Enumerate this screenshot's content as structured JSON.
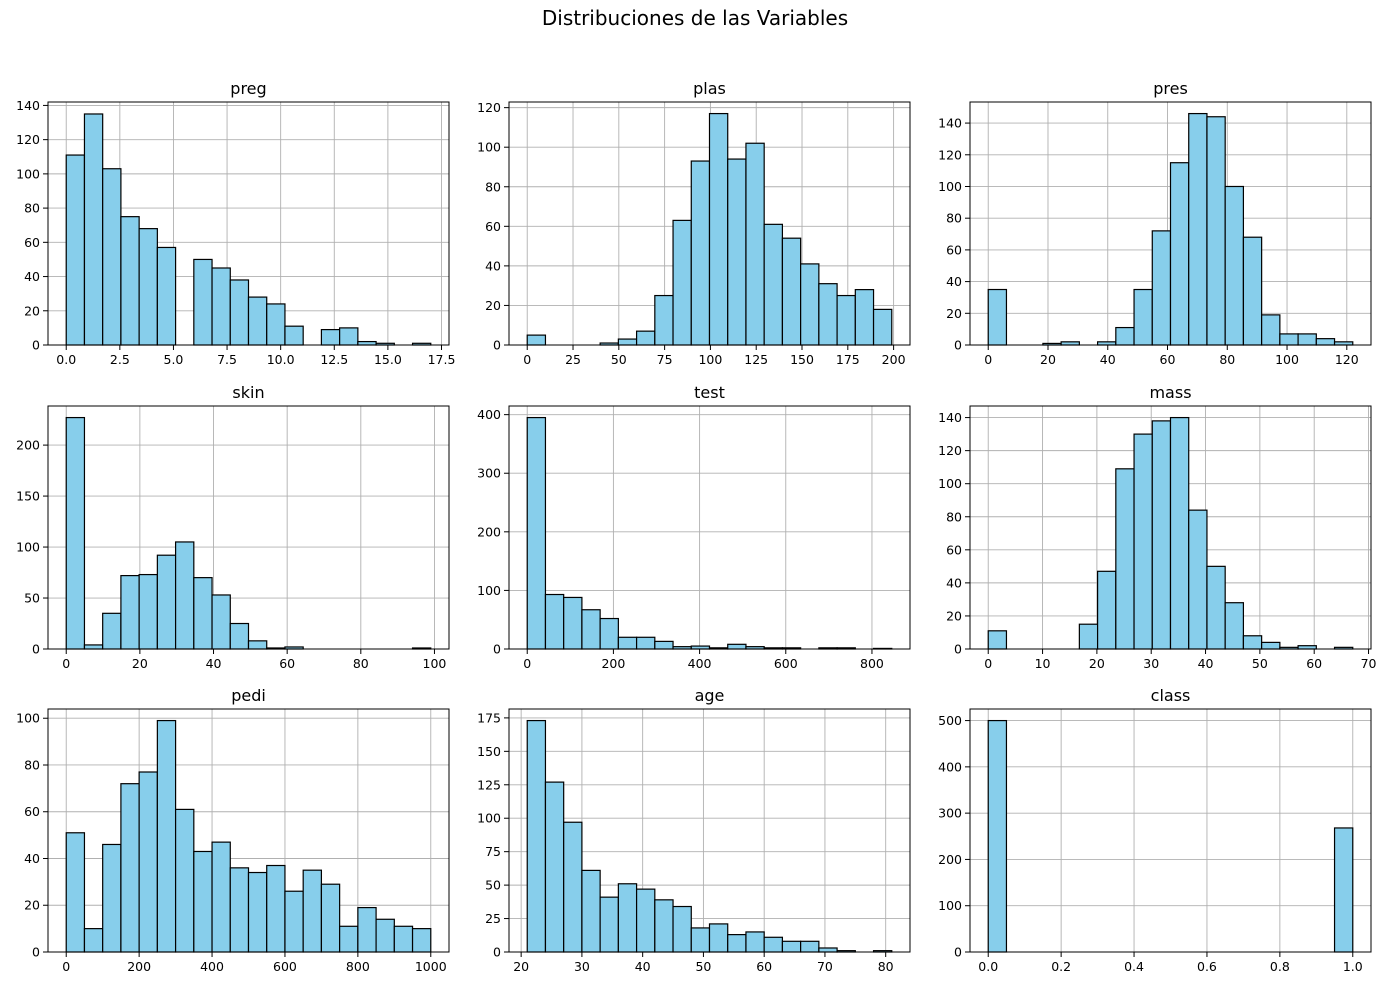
{
  "title": "Distribuciones de las Variables",
  "colors": {
    "bar_fill": "#87ceeb",
    "bar_edge": "#000000",
    "grid": "#b0b0b0"
  },
  "chart_data": [
    {
      "type": "bar",
      "title": "preg",
      "grid": true,
      "bins": {
        "start": 0,
        "end": 17,
        "count": 20
      },
      "counts": [
        111,
        135,
        103,
        75,
        68,
        57,
        0,
        50,
        45,
        38,
        28,
        24,
        11,
        0,
        9,
        10,
        2,
        1,
        0,
        1
      ],
      "xlim": [
        -0.85,
        17.85
      ],
      "ylim": [
        0,
        142
      ],
      "xticks": [
        0,
        2.5,
        5,
        7.5,
        10,
        12.5,
        15,
        17.5
      ],
      "xtick_labels": [
        "0.0",
        "2.5",
        "5.0",
        "7.5",
        "10.0",
        "12.5",
        "15.0",
        "17.5"
      ],
      "yticks": [
        0,
        20,
        40,
        60,
        80,
        100,
        120,
        140
      ],
      "ytick_labels": [
        "0",
        "20",
        "40",
        "60",
        "80",
        "100",
        "120",
        "140"
      ]
    },
    {
      "type": "bar",
      "title": "plas",
      "grid": true,
      "bins": {
        "start": 0,
        "end": 199,
        "count": 20
      },
      "counts": [
        5,
        0,
        0,
        0,
        1,
        3,
        7,
        25,
        63,
        93,
        117,
        94,
        102,
        61,
        54,
        41,
        31,
        25,
        28,
        18
      ],
      "xlim": [
        -9.95,
        208.95
      ],
      "ylim": [
        0,
        122.85
      ],
      "xticks": [
        0,
        25,
        50,
        75,
        100,
        125,
        150,
        175,
        200
      ],
      "xtick_labels": [
        "0",
        "25",
        "50",
        "75",
        "100",
        "125",
        "150",
        "175",
        "200"
      ],
      "yticks": [
        0,
        20,
        40,
        60,
        80,
        100,
        120
      ],
      "ytick_labels": [
        "0",
        "20",
        "40",
        "60",
        "80",
        "100",
        "120"
      ]
    },
    {
      "type": "bar",
      "title": "pres",
      "grid": true,
      "bins": {
        "start": 0,
        "end": 122,
        "count": 20
      },
      "counts": [
        35,
        0,
        0,
        1,
        2,
        0,
        2,
        11,
        35,
        72,
        115,
        146,
        144,
        100,
        68,
        19,
        7,
        7,
        4,
        2
      ],
      "xlim": [
        -6.1,
        128.1
      ],
      "ylim": [
        0,
        153.3
      ],
      "xticks": [
        0,
        20,
        40,
        60,
        80,
        100,
        120
      ],
      "xtick_labels": [
        "0",
        "20",
        "40",
        "60",
        "80",
        "100",
        "120"
      ],
      "yticks": [
        0,
        20,
        40,
        60,
        80,
        100,
        120,
        140
      ],
      "ytick_labels": [
        "0",
        "20",
        "40",
        "60",
        "80",
        "100",
        "120",
        "140"
      ]
    },
    {
      "type": "bar",
      "title": "skin",
      "grid": true,
      "bins": {
        "start": 0,
        "end": 99,
        "count": 20
      },
      "counts": [
        227,
        4,
        35,
        72,
        73,
        92,
        105,
        70,
        53,
        25,
        8,
        1,
        2,
        0,
        0,
        0,
        0,
        0,
        0,
        1
      ],
      "xlim": [
        -4.95,
        103.95
      ],
      "ylim": [
        0,
        238.35
      ],
      "xticks": [
        0,
        20,
        40,
        60,
        80,
        100
      ],
      "xtick_labels": [
        "0",
        "20",
        "40",
        "60",
        "80",
        "100"
      ],
      "yticks": [
        0,
        50,
        100,
        150,
        200
      ],
      "ytick_labels": [
        "0",
        "50",
        "100",
        "150",
        "200"
      ]
    },
    {
      "type": "bar",
      "title": "test",
      "grid": true,
      "bins": {
        "start": 0,
        "end": 846,
        "count": 20
      },
      "counts": [
        395,
        93,
        88,
        67,
        52,
        20,
        20,
        13,
        4,
        5,
        2,
        8,
        4,
        2,
        2,
        0,
        2,
        2,
        0,
        1
      ],
      "xlim": [
        -42.3,
        888.3
      ],
      "ylim": [
        0,
        414.75
      ],
      "xticks": [
        0,
        200,
        400,
        600,
        800
      ],
      "xtick_labels": [
        "0",
        "200",
        "400",
        "600",
        "800"
      ],
      "yticks": [
        0,
        100,
        200,
        300,
        400
      ],
      "ytick_labels": [
        "0",
        "100",
        "200",
        "300",
        "400"
      ]
    },
    {
      "type": "bar",
      "title": "mass",
      "grid": true,
      "bins": {
        "start": 0,
        "end": 67.1,
        "count": 20
      },
      "counts": [
        11,
        0,
        0,
        0,
        0,
        15,
        47,
        109,
        130,
        138,
        140,
        84,
        50,
        28,
        8,
        4,
        1,
        2,
        0,
        1
      ],
      "xlim": [
        -3.355,
        70.455
      ],
      "ylim": [
        0,
        147
      ],
      "xticks": [
        0,
        10,
        20,
        30,
        40,
        50,
        60,
        70
      ],
      "xtick_labels": [
        "0",
        "10",
        "20",
        "30",
        "40",
        "50",
        "60",
        "70"
      ],
      "yticks": [
        0,
        20,
        40,
        60,
        80,
        100,
        120,
        140
      ],
      "ytick_labels": [
        "0",
        "20",
        "40",
        "60",
        "80",
        "100",
        "120",
        "140"
      ]
    },
    {
      "type": "bar",
      "title": "pedi",
      "grid": true,
      "bins": {
        "start": 0,
        "end": 1000,
        "count": 20
      },
      "counts": [
        51,
        10,
        46,
        72,
        77,
        99,
        61,
        43,
        47,
        36,
        34,
        37,
        26,
        35,
        29,
        11,
        19,
        14,
        11,
        10
      ],
      "xlim": [
        -50,
        1050
      ],
      "ylim": [
        0,
        103.95
      ],
      "xticks": [
        0,
        200,
        400,
        600,
        800,
        1000
      ],
      "xtick_labels": [
        "0",
        "200",
        "400",
        "600",
        "800",
        "1000"
      ],
      "yticks": [
        0,
        20,
        40,
        60,
        80,
        100
      ],
      "ytick_labels": [
        "0",
        "20",
        "40",
        "60",
        "80",
        "100"
      ]
    },
    {
      "type": "bar",
      "title": "age",
      "grid": true,
      "bins": {
        "start": 21,
        "end": 81,
        "count": 20
      },
      "counts": [
        173,
        127,
        97,
        61,
        41,
        51,
        47,
        39,
        34,
        18,
        21,
        13,
        15,
        11,
        8,
        8,
        3,
        1,
        0,
        1
      ],
      "xlim": [
        18,
        84
      ],
      "ylim": [
        0,
        181.65
      ],
      "xticks": [
        20,
        30,
        40,
        50,
        60,
        70,
        80
      ],
      "xtick_labels": [
        "20",
        "30",
        "40",
        "50",
        "60",
        "70",
        "80"
      ],
      "yticks": [
        0,
        25,
        50,
        75,
        100,
        125,
        150,
        175
      ],
      "ytick_labels": [
        "0",
        "25",
        "50",
        "75",
        "100",
        "125",
        "150",
        "175"
      ]
    },
    {
      "type": "bar",
      "title": "class",
      "grid": true,
      "bins": {
        "start": 0,
        "end": 1,
        "count": 20
      },
      "counts": [
        500,
        0,
        0,
        0,
        0,
        0,
        0,
        0,
        0,
        0,
        0,
        0,
        0,
        0,
        0,
        0,
        0,
        0,
        0,
        268
      ],
      "xlim": [
        -0.05,
        1.05
      ],
      "ylim": [
        0,
        525
      ],
      "xticks": [
        0,
        0.2,
        0.4,
        0.6,
        0.8,
        1.0
      ],
      "xtick_labels": [
        "0.0",
        "0.2",
        "0.4",
        "0.6",
        "0.8",
        "1.0"
      ],
      "yticks": [
        0,
        100,
        200,
        300,
        400,
        500
      ],
      "ytick_labels": [
        "0",
        "100",
        "200",
        "300",
        "400",
        "500"
      ]
    }
  ]
}
